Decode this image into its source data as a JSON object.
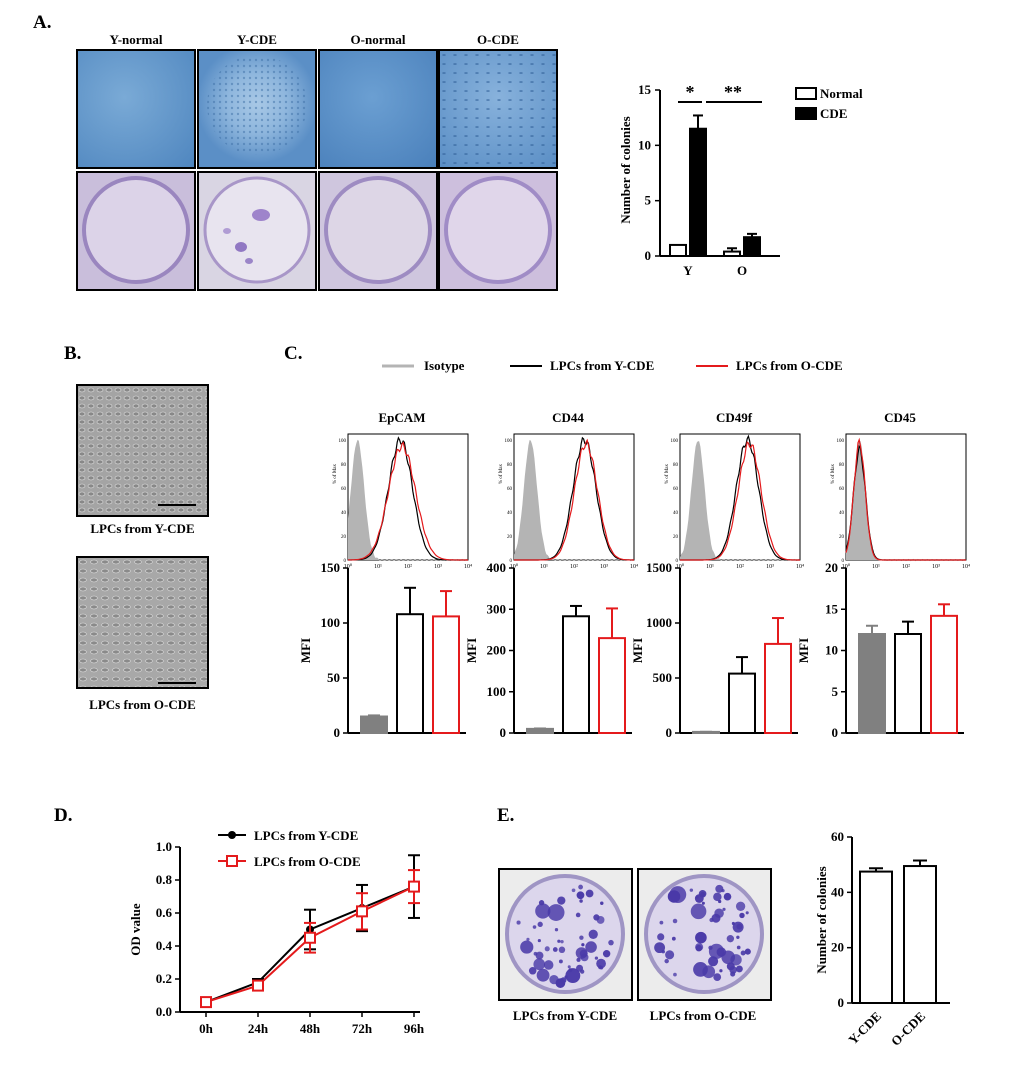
{
  "panels": {
    "A": "A.",
    "B": "B.",
    "C": "C.",
    "D": "D.",
    "E": "E."
  },
  "panelA": {
    "columns": [
      "Y-normal",
      "Y-CDE",
      "O-normal",
      "O-CDE"
    ],
    "colors": {
      "micro": "#5f93c8",
      "dish": "#d5cbe3",
      "dish_stain": "#8060b8"
    },
    "significance": [
      "*",
      "**"
    ]
  },
  "panelB": {
    "captions": [
      "LPCs from Y-CDE",
      "LPCs from O-CDE"
    ]
  },
  "panelC": {
    "legend": [
      "Isotype",
      "LPCs from Y-CDE",
      "LPCs from O-CDE"
    ],
    "hist_ylabel": "% of Max",
    "hist_yticks": [
      "0",
      "20",
      "40",
      "60",
      "80",
      "100"
    ],
    "hist_xticks": [
      "10⁰",
      "10¹",
      "10²",
      "10³",
      "10⁴"
    ],
    "colors": {
      "isotype": "#b4b4b4",
      "ycde": "#000000",
      "ocde": "#e41a1c"
    }
  },
  "panelE": {
    "captions": [
      "LPCs from Y-CDE",
      "LPCs from O-CDE"
    ],
    "colors": {
      "dish": "#dcd6ec",
      "colony": "#4a3aa8"
    }
  },
  "chart_data": [
    {
      "type": "bar",
      "id": "A",
      "categories": [
        "Y",
        "O"
      ],
      "series": [
        {
          "name": "Normal",
          "values": [
            1.0,
            0.4
          ],
          "errors": [
            0,
            0.3
          ]
        },
        {
          "name": "CDE",
          "values": [
            11.5,
            1.7
          ],
          "errors": [
            1.2,
            0.3
          ]
        }
      ],
      "ylabel": "Number of colonies",
      "ylim": [
        0,
        15
      ],
      "yticks": [
        0,
        5,
        10,
        15
      ]
    },
    {
      "type": "bar",
      "id": "C1",
      "title": "EpCAM",
      "ylabel": "MFI",
      "values": [
        15,
        108,
        106
      ],
      "errors": [
        1,
        24,
        23
      ],
      "ylim": [
        0,
        150
      ],
      "yticks": [
        0,
        50,
        100,
        150
      ]
    },
    {
      "type": "bar",
      "id": "C2",
      "title": "CD44",
      "ylabel": "MFI",
      "values": [
        10,
        283,
        230
      ],
      "errors": [
        1,
        25,
        72
      ],
      "ylim": [
        0,
        400
      ],
      "yticks": [
        0,
        100,
        200,
        300,
        400
      ]
    },
    {
      "type": "bar",
      "id": "C3",
      "title": "CD49f",
      "ylabel": "MFI",
      "values": [
        10,
        540,
        810
      ],
      "errors": [
        1,
        150,
        235
      ],
      "ylim": [
        0,
        1500
      ],
      "yticks": [
        0,
        500,
        1000,
        1500
      ]
    },
    {
      "type": "bar",
      "id": "C4",
      "title": "CD45",
      "ylabel": "MFI",
      "values": [
        12,
        12,
        14.2
      ],
      "errors": [
        1,
        1.5,
        1.4
      ],
      "ylim": [
        0,
        20
      ],
      "yticks": [
        0,
        5,
        10,
        15,
        20
      ]
    },
    {
      "type": "line",
      "id": "D",
      "x": [
        "0h",
        "24h",
        "48h",
        "72h",
        "96h"
      ],
      "series": [
        {
          "name": "LPCs from Y-CDE",
          "values": [
            0.06,
            0.18,
            0.5,
            0.63,
            0.76
          ],
          "errors": [
            0.01,
            0.02,
            0.12,
            0.14,
            0.19
          ]
        },
        {
          "name": "LPCs from O-CDE",
          "values": [
            0.06,
            0.16,
            0.45,
            0.61,
            0.76
          ],
          "errors": [
            0.01,
            0.02,
            0.09,
            0.11,
            0.1
          ]
        }
      ],
      "ylabel": "OD value",
      "ylim": [
        0,
        1.0
      ],
      "yticks": [
        "0.0",
        "0.2",
        "0.4",
        "0.6",
        "0.8",
        "1.0"
      ]
    },
    {
      "type": "bar",
      "id": "E",
      "categories": [
        "Y-CDE",
        "O-CDE"
      ],
      "values": [
        47.5,
        49.5
      ],
      "errors": [
        1.2,
        2.0
      ],
      "ylabel": "Number of colonies",
      "ylim": [
        0,
        60
      ],
      "yticks": [
        0,
        20,
        40,
        60
      ]
    }
  ]
}
